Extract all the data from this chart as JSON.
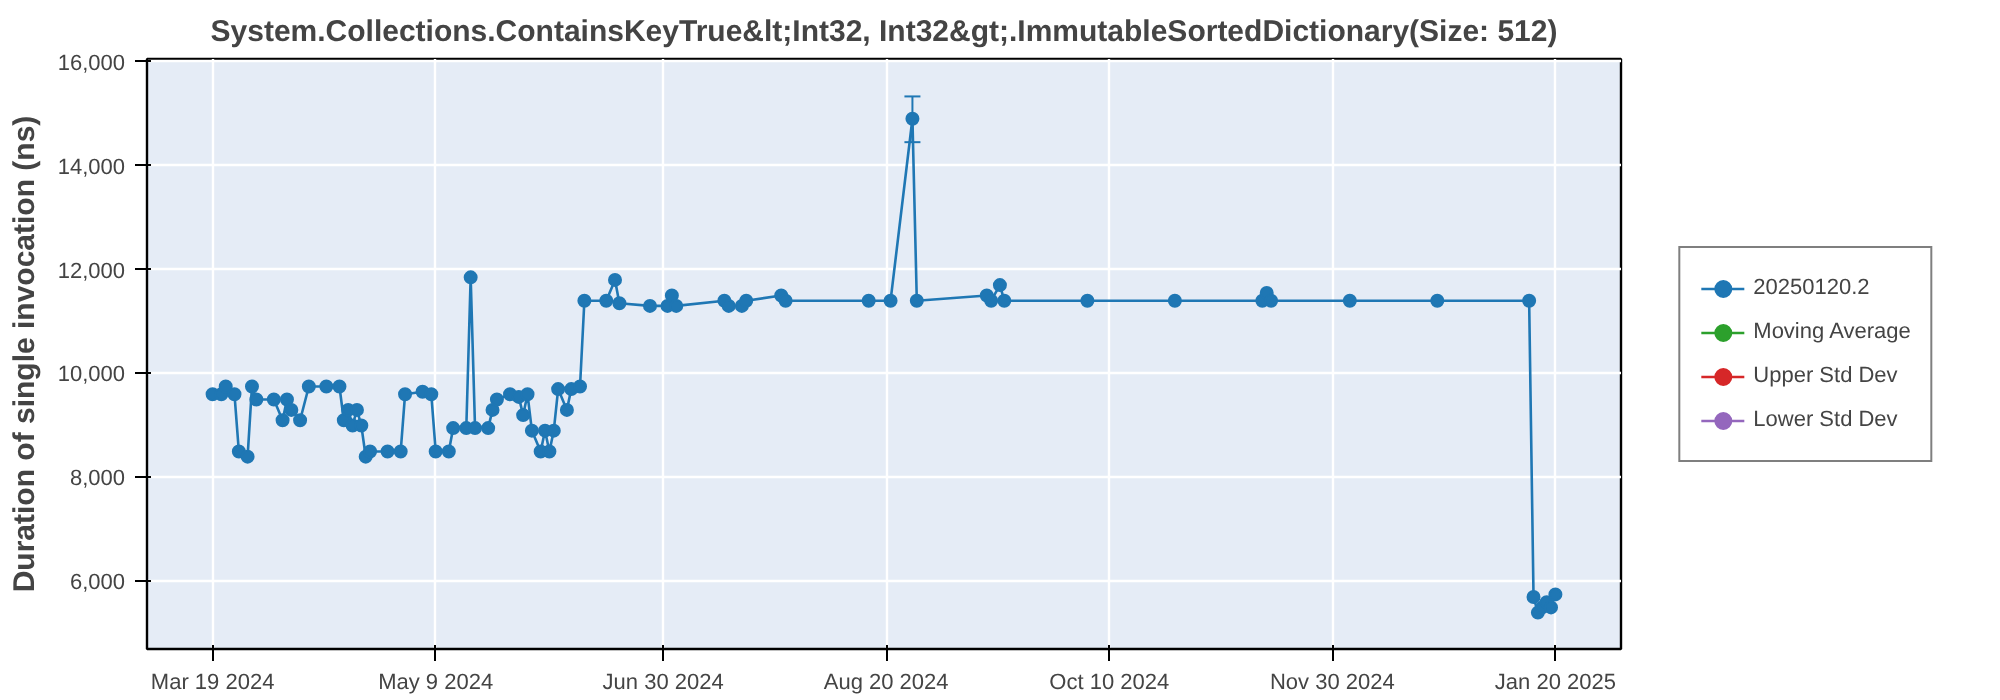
{
  "chart_data": {
    "type": "line",
    "title": "System.Collections.ContainsKeyTrue&lt;Int32, Int32&gt;.ImmutableSortedDictionary(Size: 512)",
    "ylabel": "Duration of single invocation (ns)",
    "x": [
      "2024-03-19",
      "2024-03-21",
      "2024-03-22",
      "2024-03-24",
      "2024-03-25",
      "2024-03-27",
      "2024-03-28",
      "2024-03-29",
      "2024-04-02",
      "2024-04-04",
      "2024-04-05",
      "2024-04-06",
      "2024-04-08",
      "2024-04-10",
      "2024-04-14",
      "2024-04-17",
      "2024-04-18",
      "2024-04-19",
      "2024-04-20",
      "2024-04-21",
      "2024-04-22",
      "2024-04-23",
      "2024-04-24",
      "2024-04-28",
      "2024-05-01",
      "2024-05-02",
      "2024-05-06",
      "2024-05-08",
      "2024-05-09",
      "2024-05-12",
      "2024-05-13",
      "2024-05-16",
      "2024-05-17",
      "2024-05-18",
      "2024-05-21",
      "2024-05-22",
      "2024-05-23",
      "2024-05-26",
      "2024-05-28",
      "2024-05-29",
      "2024-05-30",
      "2024-05-31",
      "2024-06-02",
      "2024-06-03",
      "2024-06-04",
      "2024-06-05",
      "2024-06-06",
      "2024-06-08",
      "2024-06-09",
      "2024-06-11",
      "2024-06-12",
      "2024-06-17",
      "2024-06-19",
      "2024-06-20",
      "2024-06-27",
      "2024-07-01",
      "2024-07-02",
      "2024-07-03",
      "2024-07-14",
      "2024-07-15",
      "2024-07-18",
      "2024-07-19",
      "2024-07-27",
      "2024-07-28",
      "2024-08-16",
      "2024-08-21",
      "2024-08-26",
      "2024-08-27",
      "2024-09-12",
      "2024-09-13",
      "2024-09-15",
      "2024-09-16",
      "2024-10-05",
      "2024-10-25",
      "2024-11-14",
      "2024-11-15",
      "2024-11-16",
      "2024-12-04",
      "2024-12-24",
      "2025-01-14",
      "2025-01-15",
      "2025-01-16",
      "2025-01-17",
      "2025-01-18",
      "2025-01-19",
      "2025-01-20"
    ],
    "series": [
      {
        "name": "20250120.2",
        "color": "#1f77b4",
        "values": [
          9600,
          9600,
          9750,
          9600,
          8500,
          8400,
          9750,
          9500,
          9500,
          9100,
          9500,
          9300,
          9100,
          9750,
          9750,
          9750,
          9100,
          9300,
          9000,
          9300,
          9000,
          8400,
          8500,
          8500,
          8500,
          9600,
          9650,
          9600,
          8500,
          8500,
          8950,
          8950,
          11850,
          8950,
          8950,
          9300,
          9500,
          9600,
          9550,
          9200,
          9600,
          8900,
          8500,
          8900,
          8500,
          8900,
          9700,
          9300,
          9700,
          9750,
          11400,
          11400,
          11800,
          11350,
          11300,
          11300,
          11500,
          11300,
          11400,
          11300,
          11300,
          11400,
          11500,
          11400,
          11400,
          11400,
          14900,
          11400,
          11500,
          11400,
          11700,
          11400,
          11400,
          11400,
          11400,
          11550,
          11400,
          11400,
          11400,
          11400,
          5700,
          5400,
          5500,
          5600,
          5500,
          5750
        ],
        "errors": [
          null,
          null,
          null,
          null,
          null,
          null,
          null,
          null,
          null,
          null,
          null,
          null,
          null,
          null,
          null,
          null,
          null,
          null,
          null,
          null,
          null,
          null,
          null,
          null,
          null,
          null,
          null,
          null,
          null,
          null,
          null,
          null,
          null,
          null,
          null,
          null,
          null,
          null,
          null,
          null,
          null,
          null,
          null,
          null,
          null,
          null,
          null,
          null,
          null,
          null,
          null,
          null,
          null,
          null,
          null,
          null,
          null,
          null,
          null,
          null,
          null,
          null,
          null,
          null,
          null,
          null,
          [
            14450,
            15330
          ],
          null,
          null,
          null,
          null,
          null,
          null,
          null,
          null,
          null,
          null,
          null,
          null,
          null,
          null,
          null,
          null,
          null,
          null,
          null
        ]
      },
      {
        "name": "Moving Average",
        "color": "#2ca02c",
        "values": [
          null,
          null,
          null,
          null,
          null,
          null,
          null,
          null,
          null,
          null,
          null,
          null,
          null,
          null,
          null,
          null,
          null,
          null,
          null,
          null,
          null,
          null,
          null,
          null,
          null,
          null,
          null,
          null,
          null,
          null,
          null,
          null,
          null,
          null,
          null,
          null,
          null,
          null,
          null,
          null,
          null,
          null,
          null,
          null,
          null,
          null,
          null,
          null,
          null,
          null,
          null,
          null,
          null,
          null,
          null,
          null,
          null,
          null,
          null,
          null,
          null,
          null,
          null,
          null,
          null,
          null,
          null,
          null,
          null,
          null,
          null,
          null,
          null,
          null,
          null,
          null,
          null,
          null,
          null,
          null,
          null,
          null,
          null,
          null,
          null,
          null
        ]
      },
      {
        "name": "Upper Std Dev",
        "color": "#d62728",
        "values": [
          null,
          null,
          null,
          null,
          null,
          null,
          null,
          null,
          null,
          null,
          null,
          null,
          null,
          null,
          null,
          null,
          null,
          null,
          null,
          null,
          null,
          null,
          null,
          null,
          null,
          null,
          null,
          null,
          null,
          null,
          null,
          null,
          null,
          null,
          null,
          null,
          null,
          null,
          null,
          null,
          null,
          null,
          null,
          null,
          null,
          null,
          null,
          null,
          null,
          null,
          null,
          null,
          null,
          null,
          null,
          null,
          null,
          null,
          null,
          null,
          null,
          null,
          null,
          null,
          null,
          null,
          null,
          null,
          null,
          null,
          null,
          null,
          null,
          null,
          null,
          null,
          null,
          null,
          null,
          null,
          null,
          null,
          null,
          null,
          null,
          null
        ]
      },
      {
        "name": "Lower Std Dev",
        "color": "#9467bd",
        "values": [
          null,
          null,
          null,
          null,
          null,
          null,
          null,
          null,
          null,
          null,
          null,
          null,
          null,
          null,
          null,
          null,
          null,
          null,
          null,
          null,
          null,
          null,
          null,
          null,
          null,
          null,
          null,
          null,
          null,
          null,
          null,
          null,
          null,
          null,
          null,
          null,
          null,
          null,
          null,
          null,
          null,
          null,
          null,
          null,
          null,
          null,
          null,
          null,
          null,
          null,
          null,
          null,
          null,
          null,
          null,
          null,
          null,
          null,
          null,
          null,
          null,
          null,
          null,
          null,
          null,
          null,
          null,
          null,
          null,
          null,
          null,
          null,
          null,
          null,
          null,
          null,
          null,
          null,
          null,
          null,
          null,
          null,
          null,
          null,
          null,
          null
        ]
      }
    ],
    "xlim": [
      "2024-03-04",
      "2025-02-04"
    ],
    "xticks": [
      {
        "value": "2024-03-19",
        "label": "Mar 19 2024"
      },
      {
        "value": "2024-05-09",
        "label": "May 9 2024"
      },
      {
        "value": "2024-06-30",
        "label": "Jun 30 2024"
      },
      {
        "value": "2024-08-20",
        "label": "Aug 20 2024"
      },
      {
        "value": "2024-10-10",
        "label": "Oct 10 2024"
      },
      {
        "value": "2024-11-30",
        "label": "Nov 30 2024"
      },
      {
        "value": "2025-01-20",
        "label": "Jan 20 2025"
      }
    ],
    "ylim": [
      4700,
      16050
    ],
    "yticks": [
      {
        "value": 6000,
        "label": "6,000"
      },
      {
        "value": 8000,
        "label": "8,000"
      },
      {
        "value": 10000,
        "label": "10,000"
      },
      {
        "value": 12000,
        "label": "12,000"
      },
      {
        "value": 14000,
        "label": "14,000"
      },
      {
        "value": 16000,
        "label": "16,000"
      }
    ],
    "grid": true,
    "legend": "right",
    "marker": "circle",
    "line_style": "solid"
  }
}
